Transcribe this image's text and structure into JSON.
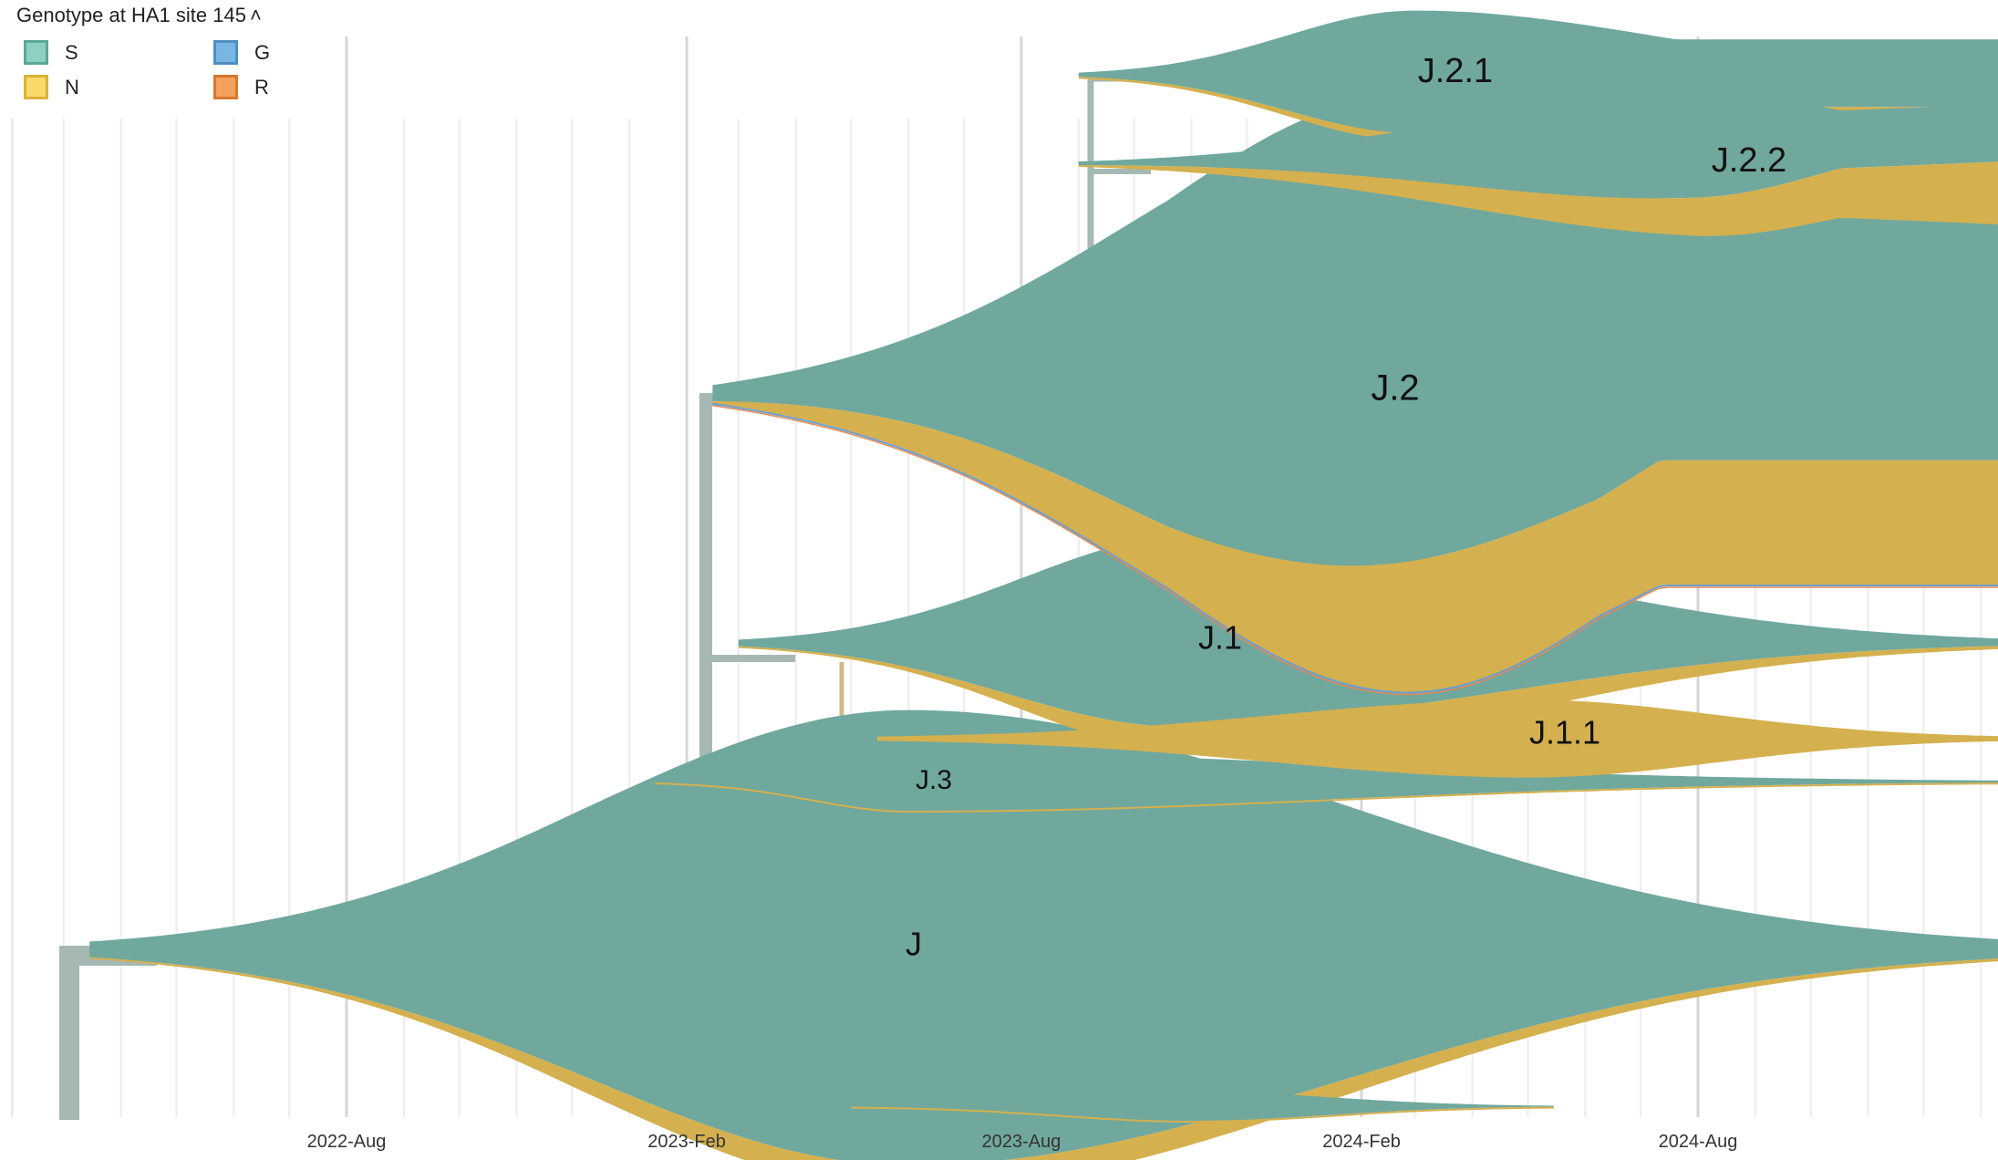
{
  "legend": {
    "title": "Genotype at HA1 site 145",
    "toggle_icon": "chevron-up-icon",
    "items": [
      {
        "label": "S",
        "fill": "#8fd0c0",
        "stroke": "#5aa898"
      },
      {
        "label": "G",
        "fill": "#7ab6e4",
        "stroke": "#4d8ec4"
      },
      {
        "label": "N",
        "fill": "#fbd86b",
        "stroke": "#d9b23a"
      },
      {
        "label": "R",
        "fill": "#f5a05e",
        "stroke": "#d9772c"
      }
    ]
  },
  "colors": {
    "S": "#70a89d",
    "N": "#d4b04f",
    "G": "#6d9fcf",
    "R": "#e38a56",
    "branch": "#a6b8b4",
    "branch_N": "#cdbb8f",
    "grid_major": "#d6d6d6",
    "grid_minor": "#ececec"
  },
  "chart_data": {
    "type": "area",
    "title": "Genotype at HA1 site 145",
    "xlabel": "",
    "ylabel": "",
    "x_range": [
      "2022-01-01",
      "2025-01-31"
    ],
    "x_ticks": [
      "2022-Aug",
      "2023-Feb",
      "2023-Aug",
      "2024-Feb",
      "2024-Aug"
    ],
    "grid": "monthly",
    "legend_position": "top-left",
    "series_note": "Each clade is a streamgraph of relative frequency over time, stacked by genotype at HA1 site 145 (S, N, G, R).",
    "clades": [
      {
        "name": "J",
        "label": "J",
        "parent": null,
        "start": "2022-03-15",
        "end": "2025-01-31",
        "peak_date": "2023-06-01",
        "peak_S": 0.78,
        "peak_N": 0.04,
        "min_N": 0.0
      },
      {
        "name": "J.3",
        "label": "J.3",
        "parent": "J",
        "start": "2023-01-15",
        "end": "2025-01-15",
        "peak_date": "2023-06-01",
        "peak_S": 0.1,
        "peak_N": 0.0
      },
      {
        "name": "J.1",
        "label": "J.1",
        "parent": "J",
        "start": "2023-03-01",
        "end": "2025-01-20",
        "peak_date": "2023-11-01",
        "peak_S": 0.33,
        "peak_N": 0.06
      },
      {
        "name": "J.1.1",
        "label": "J.1.1",
        "parent": "J.1",
        "start": "2023-05-15",
        "end": "2025-01-20",
        "peak_date": "2024-05-01",
        "peak_S": 0.0,
        "peak_N": 0.13
      },
      {
        "name": "J.2",
        "label": "J.2",
        "parent": "J",
        "start": "2023-02-15",
        "end": "2025-01-31",
        "peak_date": "2024-02-15",
        "peak_S": 0.8,
        "peak_N": 0.3
      },
      {
        "name": "J.2.1",
        "label": "J.2.1",
        "parent": "J.2",
        "start": "2023-09-01",
        "end": "2025-01-31",
        "peak_date": "2024-03-01",
        "peak_S": 0.21,
        "peak_N": 0.01
      },
      {
        "name": "J.2.2",
        "label": "J.2.2",
        "parent": "J.2",
        "start": "2023-09-01",
        "end": "2025-01-31",
        "peak_date": "2024-08-01",
        "peak_S": 0.18,
        "peak_N": 0.11
      },
      {
        "name": "J-side",
        "label": "",
        "parent": "J",
        "start": "2023-05-01",
        "end": "2024-05-15",
        "peak_date": "2023-11-01",
        "peak_S": 0.05,
        "peak_N": 0.0
      }
    ]
  }
}
